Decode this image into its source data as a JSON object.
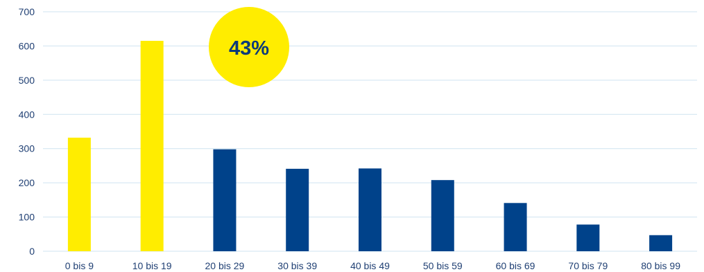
{
  "chart_data": {
    "type": "bar",
    "title": "",
    "xlabel": "",
    "ylabel": "",
    "ylim": [
      0,
      700
    ],
    "yticks": [
      0,
      100,
      200,
      300,
      400,
      500,
      600,
      700
    ],
    "grid": true,
    "categories": [
      "0 bis 9",
      "10 bis 19",
      "20 bis 29",
      "30 bis 39",
      "40 bis 49",
      "50 bis 59",
      "60 bis 69",
      "70 bis 79",
      "80 bis 99"
    ],
    "values": [
      332,
      615,
      298,
      241,
      242,
      208,
      141,
      78,
      47
    ],
    "colors": [
      "#ffed00",
      "#ffed00",
      "#00428a",
      "#00428a",
      "#00428a",
      "#00428a",
      "#00428a",
      "#00428a",
      "#00428a"
    ],
    "annotation": {
      "text": "43%",
      "color": "#ffed00"
    }
  },
  "colors": {
    "highlight": "#ffed00",
    "primary": "#00428a",
    "grid": "#cfe3f0",
    "text": "#1f3f73"
  }
}
